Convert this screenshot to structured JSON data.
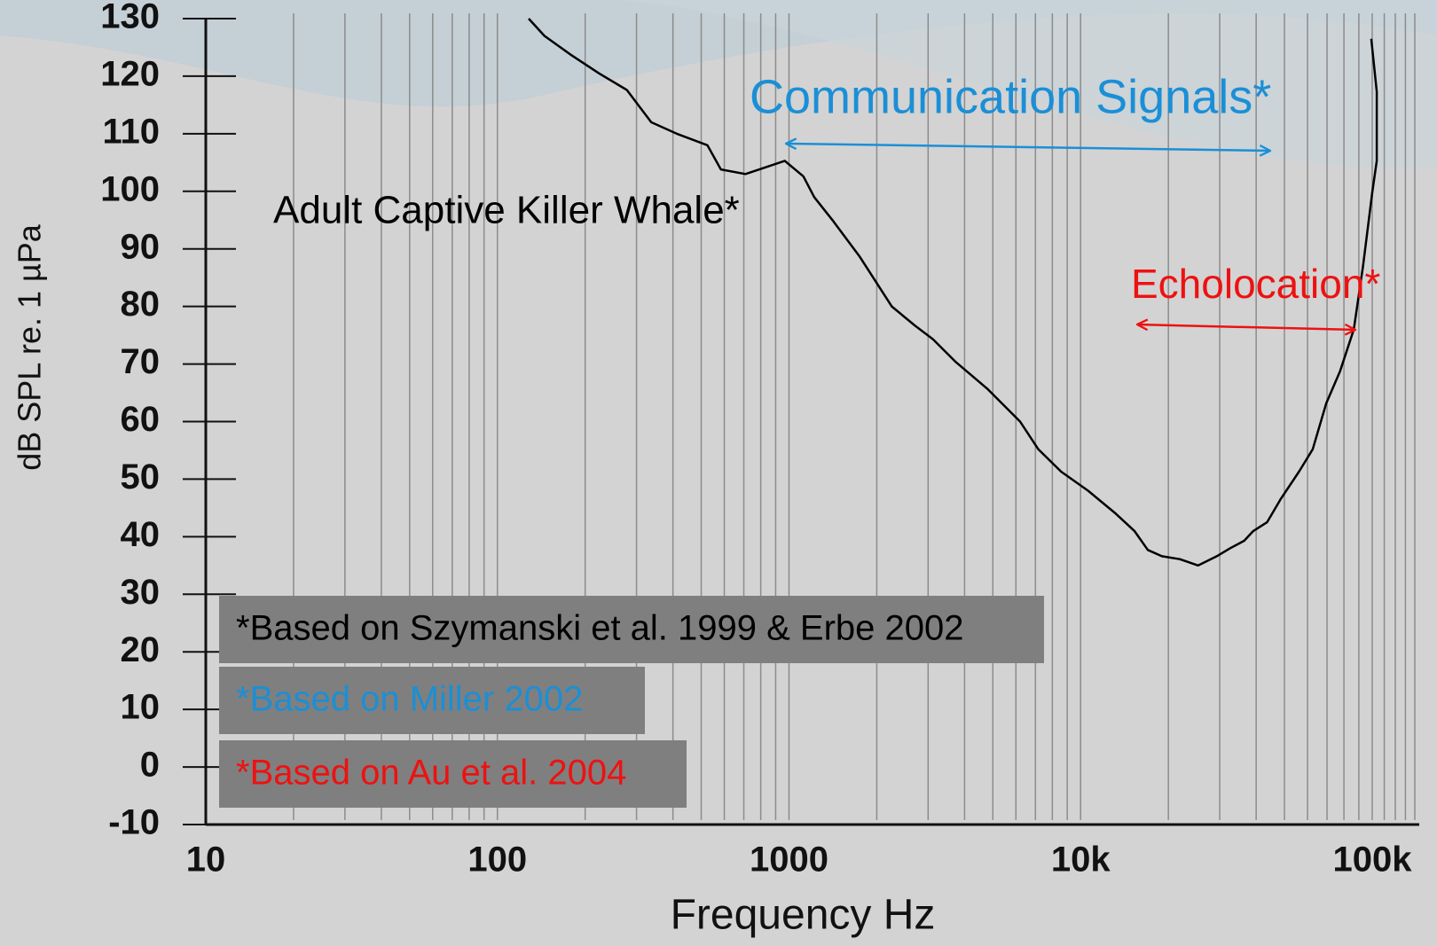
{
  "chart_data": {
    "type": "line",
    "xlabel": "Frequency Hz",
    "ylabel": "dB SPL re. 1 µPa",
    "xscale": "log",
    "xlim": [
      10,
      145000
    ],
    "ylim": [
      -10,
      130
    ],
    "xticks": [
      10,
      100,
      1000,
      {
        "value": 10000,
        "label": "10k"
      },
      {
        "value": 100000,
        "label": "100k"
      }
    ],
    "yticks": [
      -10,
      0,
      10,
      20,
      30,
      40,
      50,
      60,
      70,
      80,
      90,
      100,
      110,
      120,
      130
    ],
    "xgrid": [
      20,
      30,
      40,
      50,
      60,
      70,
      80,
      90,
      100,
      200,
      300,
      400,
      500,
      600,
      700,
      800,
      900,
      1000,
      2000,
      3000,
      4000,
      5000,
      6000,
      7000,
      8000,
      9000,
      10000,
      20000,
      30000,
      40000,
      50000,
      60000,
      70000,
      80000,
      90000,
      100000,
      110000,
      120000,
      130000,
      140000
    ],
    "x": [
      128,
      145,
      180,
      223,
      278,
      337,
      413,
      525,
      584,
      709,
      967,
      1120,
      1220,
      1410,
      1750,
      2250,
      2700,
      3120,
      3740,
      4810,
      6200,
      7160,
      8580,
      10600,
      13200,
      15300,
      17000,
      19000,
      21900,
      25300,
      29300,
      32600,
      36400,
      39100,
      43600,
      48500,
      56100,
      62500,
      69600,
      77600,
      86500,
      93000,
      100000,
      103700,
      103700,
      99300
    ],
    "series": [
      {
        "name": "Adult Captive Killer Whale*",
        "color": "#000000",
        "values": [
          130,
          127,
          123.6,
          120.5,
          117.6,
          112,
          110,
          108,
          103.8,
          103,
          105.3,
          102.6,
          99,
          95,
          88.6,
          80,
          76.7,
          74.3,
          70.3,
          65.6,
          60,
          55.2,
          51.3,
          48,
          44,
          41,
          37.7,
          36.6,
          36.1,
          35,
          36.6,
          38,
          39.3,
          41,
          42.5,
          46.5,
          51.3,
          55.2,
          63.2,
          68.75,
          76,
          87,
          99.8,
          105.3,
          117.3,
          126.5
        ]
      }
    ],
    "annotations": [
      {
        "text": "Communication Signals*",
        "color": "#1b8fd6"
      },
      {
        "text": "Echolocation*",
        "color": "#ee1111"
      }
    ],
    "notes": [
      {
        "text": "*Based on Szymanski et al. 1999 & Erbe 2002",
        "color": "#000000"
      },
      {
        "text": "*Based on Miller 2002",
        "color": "#1b8fd6"
      },
      {
        "text": "*Based on Au et al. 2004",
        "color": "#ee1111"
      }
    ],
    "grid": true
  }
}
